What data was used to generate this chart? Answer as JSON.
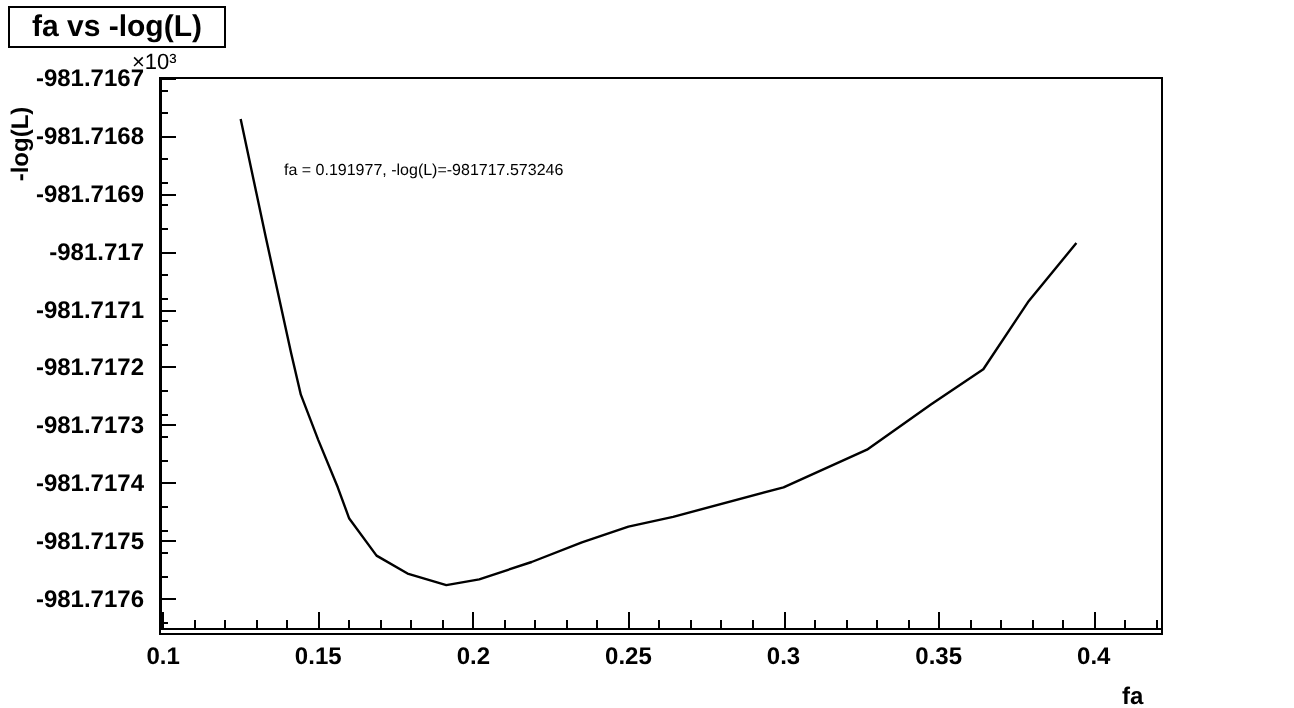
{
  "chart_data": {
    "type": "line",
    "title": "fa vs -log(L)",
    "xlabel": "fa",
    "ylabel": "-log(L)",
    "annotations": [
      "×10³",
      "fa = 0.191977, -log(L)=-981717.573246"
    ],
    "x": [
      0.125,
      0.1331,
      0.1413,
      0.1444,
      0.15,
      0.1563,
      0.16,
      0.1688,
      0.1788,
      0.1913,
      0.2019,
      0.2188,
      0.235,
      0.25,
      0.2644,
      0.3,
      0.3269,
      0.3475,
      0.3644,
      0.3788,
      0.3944
    ],
    "series": [
      {
        "color": "#000000",
        "values": [
          -981.716771,
          -981.716975,
          -981.717176,
          -981.717247,
          -981.717325,
          -981.717407,
          -981.717461,
          -981.717525,
          -981.717556,
          -981.717576,
          -981.717566,
          -981.717536,
          -981.717502,
          -981.717475,
          -981.717458,
          -981.717407,
          -981.717342,
          -981.717264,
          -981.717203,
          -981.717087,
          -981.716985
        ]
      }
    ],
    "xlim": [
      0.099,
      0.422
    ],
    "xticks": [
      0.1,
      0.15,
      0.2,
      0.25,
      0.3,
      0.35,
      0.4
    ],
    "ylim": [
      -981.71765,
      -981.7167
    ],
    "yticks": [
      -981.7176,
      -981.7175,
      -981.7174,
      -981.7173,
      -981.7172,
      -981.7171,
      -981.717,
      -981.7169,
      -981.7168,
      -981.7167
    ],
    "grid": false,
    "marker": "none",
    "line_style": "solid"
  }
}
